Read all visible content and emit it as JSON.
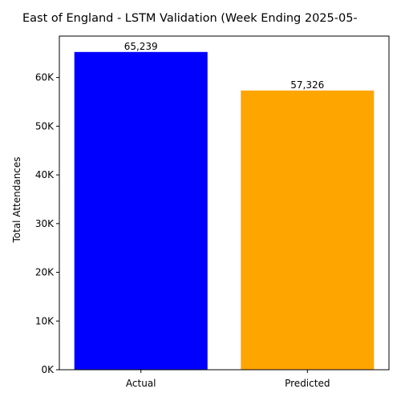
{
  "chart_data": {
    "type": "bar",
    "title": "East of England - LSTM Validation (Week Ending 2025-05-",
    "xlabel": "",
    "ylabel": "Total Attendances",
    "categories": [
      "Actual",
      "Predicted"
    ],
    "values": [
      65239,
      57326
    ],
    "value_labels": [
      "65,239",
      "57,326"
    ],
    "colors": [
      "#0000ff",
      "#ffa500"
    ],
    "ylim": [
      0,
      68500
    ],
    "yticks": [
      0,
      10000,
      20000,
      30000,
      40000,
      50000,
      60000
    ],
    "ytick_labels": [
      "0K",
      "10K",
      "20K",
      "30K",
      "40K",
      "50K",
      "60K"
    ],
    "grid": false,
    "legend": "none"
  }
}
